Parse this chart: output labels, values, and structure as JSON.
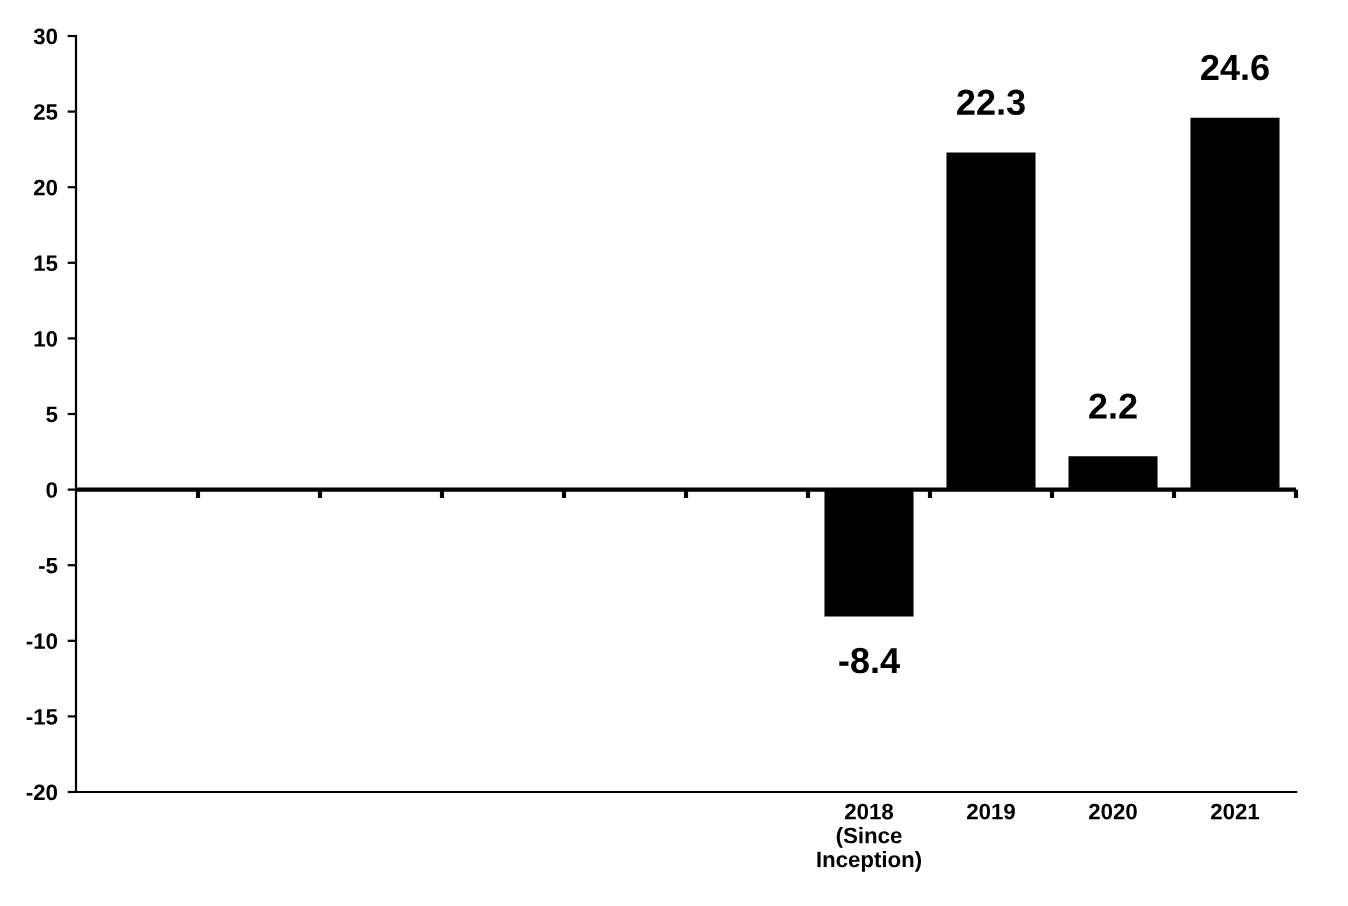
{
  "chart_data": {
    "type": "bar",
    "categories": [
      null,
      null,
      null,
      null,
      null,
      null,
      "2018\n(Since\nInception)",
      "2019",
      "2020",
      "2021"
    ],
    "values": [
      null,
      null,
      null,
      null,
      null,
      null,
      -8.4,
      22.3,
      2.2,
      24.6
    ],
    "color": "#000000",
    "ylim": [
      -20,
      30
    ],
    "yticks": [
      -20,
      -15,
      -10,
      -5,
      0,
      5,
      10,
      15,
      20,
      25,
      30
    ],
    "data_labels": true,
    "ref_lines": [
      {
        "axis": "y",
        "value": 0,
        "color": "#000000"
      }
    ]
  }
}
